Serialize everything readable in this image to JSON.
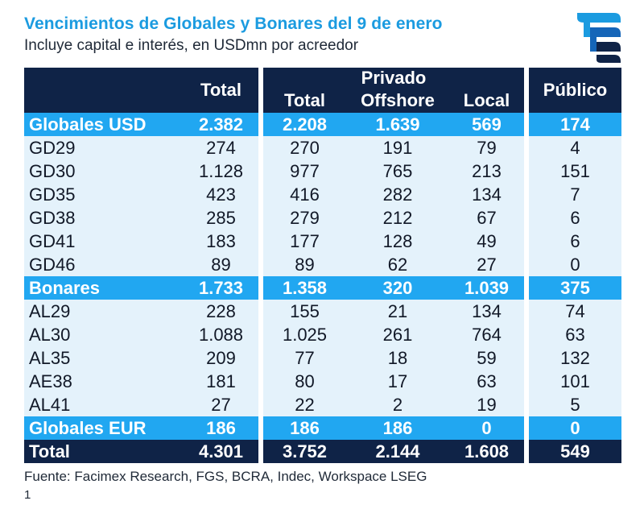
{
  "title": "Vencimientos de Globales y Bonares del 9 de enero",
  "subtitle": "Incluye capital e interés, en USDmn por acreedor",
  "logo_icon": "facimex-logo-icon",
  "colors": {
    "dark_navy": "#0f2347",
    "accent_blue": "#21a7f1",
    "light_row": "#e4f2fb",
    "title_blue": "#1b9be0"
  },
  "header": {
    "total": "Total",
    "privado": "Privado",
    "privado_total": "Total",
    "offshore": "Offshore",
    "local": "Local",
    "publico": "Público"
  },
  "sections": [
    {
      "name": "Globales USD",
      "values": [
        "2.382",
        "2.208",
        "1.639",
        "569",
        "174"
      ],
      "rows": [
        {
          "bond": "GD29",
          "values": [
            "274",
            "270",
            "191",
            "79",
            "4"
          ]
        },
        {
          "bond": "GD30",
          "values": [
            "1.128",
            "977",
            "765",
            "213",
            "151"
          ]
        },
        {
          "bond": "GD35",
          "values": [
            "423",
            "416",
            "282",
            "134",
            "7"
          ]
        },
        {
          "bond": "GD38",
          "values": [
            "285",
            "279",
            "212",
            "67",
            "6"
          ]
        },
        {
          "bond": "GD41",
          "values": [
            "183",
            "177",
            "128",
            "49",
            "6"
          ]
        },
        {
          "bond": "GD46",
          "values": [
            "89",
            "89",
            "62",
            "27",
            "0"
          ]
        }
      ]
    },
    {
      "name": "Bonares",
      "values": [
        "1.733",
        "1.358",
        "320",
        "1.039",
        "375"
      ],
      "rows": [
        {
          "bond": "AL29",
          "values": [
            "228",
            "155",
            "21",
            "134",
            "74"
          ]
        },
        {
          "bond": "AL30",
          "values": [
            "1.088",
            "1.025",
            "261",
            "764",
            "63"
          ]
        },
        {
          "bond": "AL35",
          "values": [
            "209",
            "77",
            "18",
            "59",
            "132"
          ]
        },
        {
          "bond": "AE38",
          "values": [
            "181",
            "80",
            "17",
            "63",
            "101"
          ]
        },
        {
          "bond": "AL41",
          "values": [
            "27",
            "22",
            "2",
            "19",
            "5"
          ]
        }
      ]
    },
    {
      "name": "Globales EUR",
      "values": [
        "186",
        "186",
        "186",
        "0",
        "0"
      ],
      "rows": []
    }
  ],
  "grand_total": {
    "name": "Total",
    "values": [
      "4.301",
      "3.752",
      "2.144",
      "1.608",
      "549"
    ]
  },
  "source": "Fuente: Facimex Research, FGS, BCRA, Indec, Workspace LSEG",
  "page_number": "1"
}
